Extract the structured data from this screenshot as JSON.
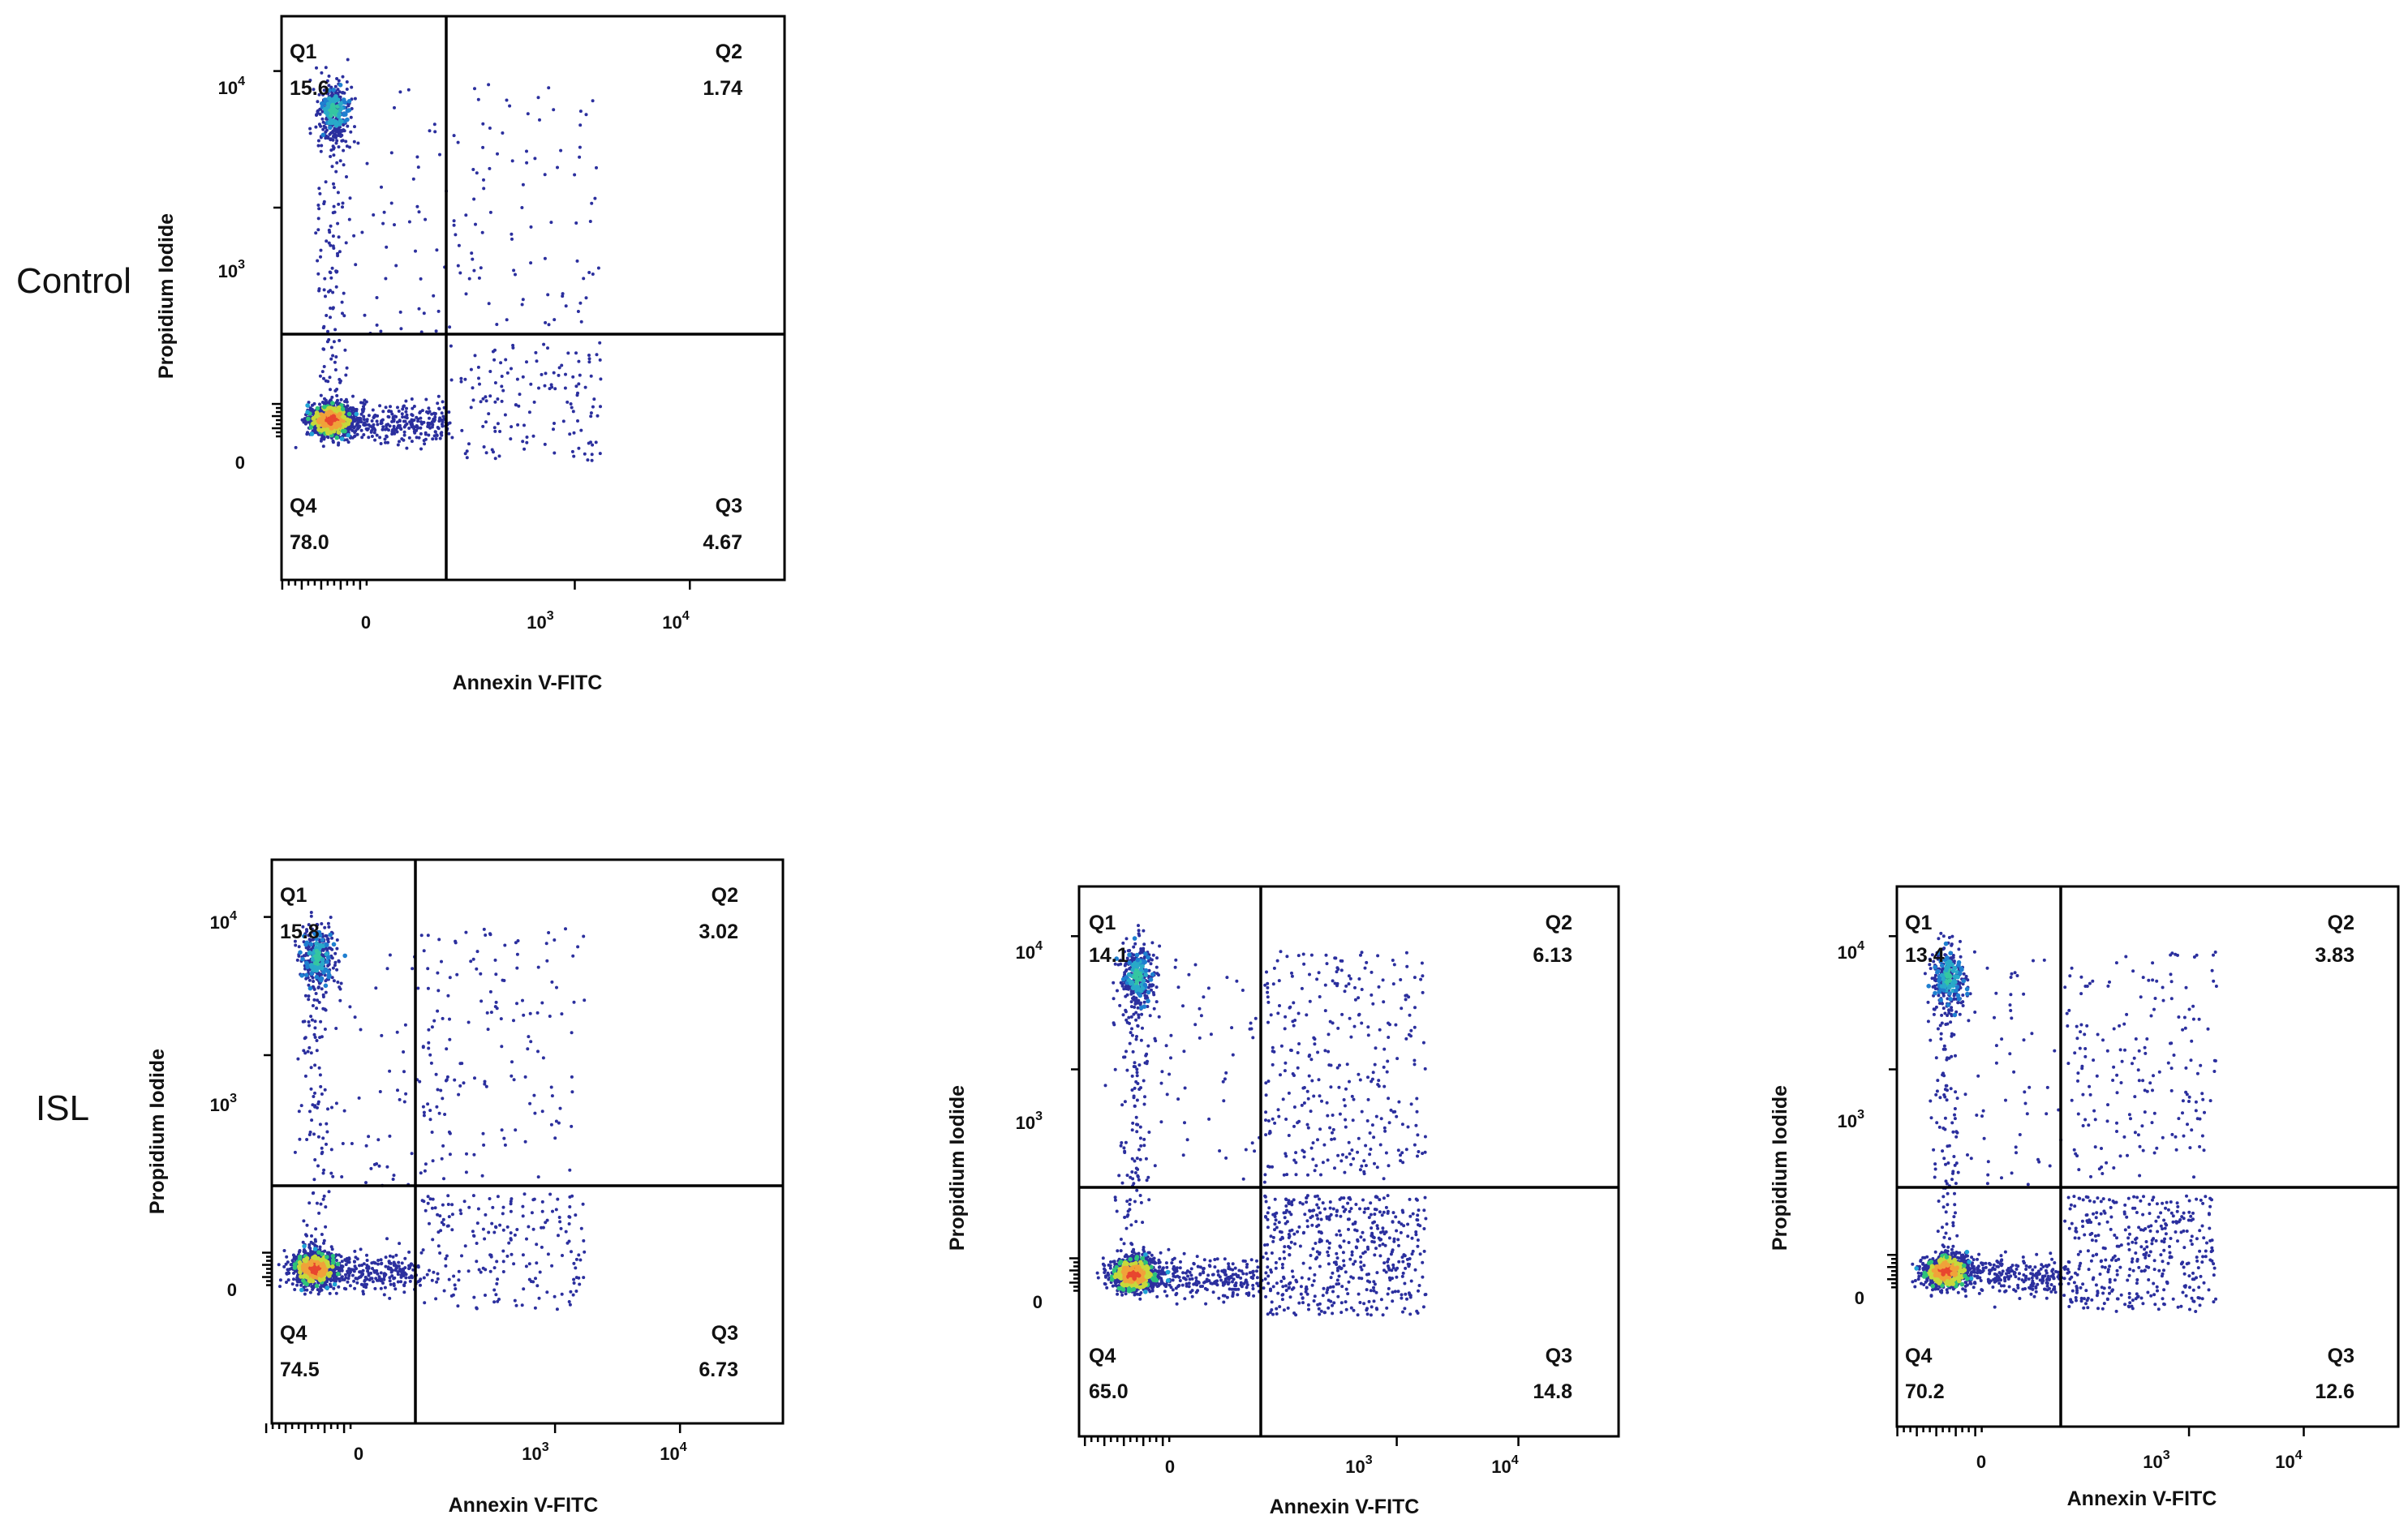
{
  "groups": {
    "control": "Control",
    "isl": "ISL"
  },
  "chart_data": [
    {
      "type": "scatter",
      "subtype": "flow-cytometry-quadrant",
      "group": "Control",
      "xlabel": "Annexin V-FITC",
      "ylabel": "Propidium Iodide",
      "x_ticks": [
        "0",
        "10^3",
        "10^4"
      ],
      "y_ticks": [
        "0",
        "10^3",
        "10^4"
      ],
      "quadrants": {
        "Q1": {
          "label": "Q1",
          "value": "15.6"
        },
        "Q2": {
          "label": "Q2",
          "value": "1.74"
        },
        "Q3": {
          "label": "Q3",
          "value": "4.67"
        },
        "Q4": {
          "label": "Q4",
          "value": "78.0"
        }
      }
    },
    {
      "type": "scatter",
      "subtype": "flow-cytometry-quadrant",
      "group": "ISL",
      "xlabel": "Annexin V-FITC",
      "ylabel": "Propidium Iodide",
      "x_ticks": [
        "0",
        "10^3",
        "10^4"
      ],
      "y_ticks": [
        "0",
        "10^3",
        "10^4"
      ],
      "quadrants": {
        "Q1": {
          "label": "Q1",
          "value": "15.8"
        },
        "Q2": {
          "label": "Q2",
          "value": "3.02"
        },
        "Q3": {
          "label": "Q3",
          "value": "6.73"
        },
        "Q4": {
          "label": "Q4",
          "value": "74.5"
        }
      }
    },
    {
      "type": "scatter",
      "subtype": "flow-cytometry-quadrant",
      "group": "ISL",
      "xlabel": "Annexin V-FITC",
      "ylabel": "Propidium Iodide",
      "x_ticks": [
        "0",
        "10^3",
        "10^4"
      ],
      "y_ticks": [
        "0",
        "10^3",
        "10^4"
      ],
      "quadrants": {
        "Q1": {
          "label": "Q1",
          "value": "14.1"
        },
        "Q2": {
          "label": "Q2",
          "value": "6.13"
        },
        "Q3": {
          "label": "Q3",
          "value": "14.8"
        },
        "Q4": {
          "label": "Q4",
          "value": "65.0"
        }
      }
    },
    {
      "type": "scatter",
      "subtype": "flow-cytometry-quadrant",
      "group": "ISL",
      "xlabel": "Annexin V-FITC",
      "ylabel": "Propidium Iodide",
      "x_ticks": [
        "0",
        "10^3",
        "10^4"
      ],
      "y_ticks": [
        "0",
        "10^3",
        "10^4"
      ],
      "quadrants": {
        "Q1": {
          "label": "Q1",
          "value": "13.4"
        },
        "Q2": {
          "label": "Q2",
          "value": "3.83"
        },
        "Q3": {
          "label": "Q3",
          "value": "12.6"
        },
        "Q4": {
          "label": "Q4",
          "value": "70.2"
        }
      }
    }
  ]
}
